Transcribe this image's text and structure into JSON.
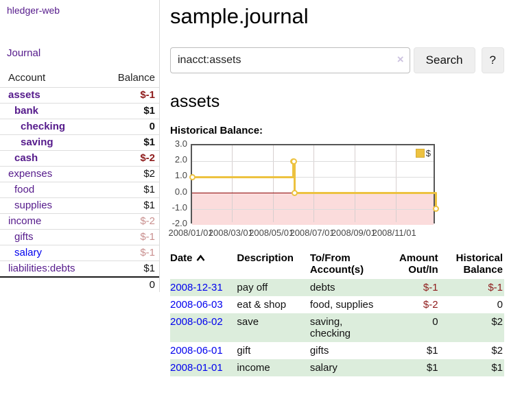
{
  "sidebar": {
    "brand": "hledger-web",
    "nav_journal": "Journal",
    "accounts_table": {
      "headers": {
        "account": "Account",
        "balance": "Balance"
      },
      "rows": [
        {
          "name": "assets",
          "level": 1,
          "bold": true,
          "link": "purple",
          "balance": "$-1",
          "balance_style": "neg-strong"
        },
        {
          "name": "bank",
          "level": 2,
          "bold": true,
          "link": "purple",
          "balance": "$1",
          "balance_style": "pos-strong"
        },
        {
          "name": "checking",
          "level": 3,
          "bold": true,
          "link": "purple",
          "balance": "0",
          "balance_style": "pos-strong"
        },
        {
          "name": "saving",
          "level": 3,
          "bold": true,
          "link": "purple",
          "balance": "$1",
          "balance_style": "pos-strong"
        },
        {
          "name": "cash",
          "level": 2,
          "bold": true,
          "link": "purple",
          "balance": "$-2",
          "balance_style": "neg-strong"
        },
        {
          "name": "expenses",
          "level": 1,
          "bold": false,
          "link": "purple",
          "balance": "$2",
          "balance_style": "pos"
        },
        {
          "name": "food",
          "level": 2,
          "bold": false,
          "link": "purple",
          "balance": "$1",
          "balance_style": "pos"
        },
        {
          "name": "supplies",
          "level": 2,
          "bold": false,
          "link": "purple",
          "balance": "$1",
          "balance_style": "pos"
        },
        {
          "name": "income",
          "level": 1,
          "bold": false,
          "link": "purple",
          "balance": "$-2",
          "balance_style": "neg-soft"
        },
        {
          "name": "gifts",
          "level": 2,
          "bold": false,
          "link": "purple",
          "balance": "$-1",
          "balance_style": "neg-soft"
        },
        {
          "name": "salary",
          "level": 2,
          "bold": false,
          "link": "blue",
          "balance": "$-1",
          "balance_style": "neg-soft"
        },
        {
          "name": "liabilities:debts",
          "level": 1,
          "bold": false,
          "link": "purple",
          "balance": "$1",
          "balance_style": "pos"
        }
      ],
      "total": "0"
    }
  },
  "header": {
    "title": "sample.journal"
  },
  "search": {
    "value": "inacct:assets",
    "clear_icon": "×",
    "button_label": "Search",
    "help_label": "?"
  },
  "account_page": {
    "title": "assets",
    "chart_label": "Historical Balance:"
  },
  "chart_data": {
    "type": "line",
    "step": true,
    "title": "Historical Balance:",
    "x_domain": [
      "2008-01-01",
      "2009-01-01"
    ],
    "ylim": [
      -2,
      3
    ],
    "y_ticks": [
      "3.0",
      "2.0",
      "1.0",
      "0.0",
      "-1.0",
      "-2.0"
    ],
    "x_ticks": [
      {
        "date": "2008-01-01",
        "label": "2008/01/01"
      },
      {
        "date": "2008-03-01",
        "label": "2008/03/01"
      },
      {
        "date": "2008-05-01",
        "label": "2008/05/01"
      },
      {
        "date": "2008-07-01",
        "label": "2008/07/01"
      },
      {
        "date": "2008-09-01",
        "label": "2008/09/01"
      },
      {
        "date": "2008-11-01",
        "label": "2008/11/01"
      },
      {
        "date": "2009-01-01",
        "label": ""
      }
    ],
    "series": [
      {
        "name": "$",
        "color": "#EDC240",
        "points": [
          {
            "x": "2008-01-01",
            "y": 1
          },
          {
            "x": "2008-06-01",
            "y": 2
          },
          {
            "x": "2008-06-02",
            "y": 2
          },
          {
            "x": "2008-06-03",
            "y": 0
          },
          {
            "x": "2008-12-31",
            "y": -1
          }
        ]
      }
    ],
    "negative_region_color": "#FBDCDC",
    "zero_line_color": "#8B0000",
    "legend": {
      "label": "$",
      "position": "top-right"
    },
    "grid": true
  },
  "transactions": {
    "headers": [
      "Date",
      "Description",
      "To/From Account(s)",
      "Amount Out/In",
      "Historical Balance"
    ],
    "sort": {
      "column": "Date",
      "direction": "asc"
    },
    "rows": [
      {
        "date": "2008-12-31",
        "description": "pay off",
        "accounts": "debts",
        "amount": "$-1",
        "amount_negative": true,
        "balance": "$-1",
        "balance_negative": true
      },
      {
        "date": "2008-06-03",
        "description": "eat & shop",
        "accounts": "food, supplies",
        "amount": "$-2",
        "amount_negative": true,
        "balance": "0",
        "balance_negative": false
      },
      {
        "date": "2008-06-02",
        "description": "save",
        "accounts": "saving, checking",
        "amount": "0",
        "amount_negative": false,
        "balance": "$2",
        "balance_negative": false
      },
      {
        "date": "2008-06-01",
        "description": "gift",
        "accounts": "gifts",
        "amount": "$1",
        "amount_negative": false,
        "balance": "$2",
        "balance_negative": false
      },
      {
        "date": "2008-01-01",
        "description": "income",
        "accounts": "salary",
        "amount": "$1",
        "amount_negative": false,
        "balance": "$1",
        "balance_negative": false
      }
    ]
  }
}
